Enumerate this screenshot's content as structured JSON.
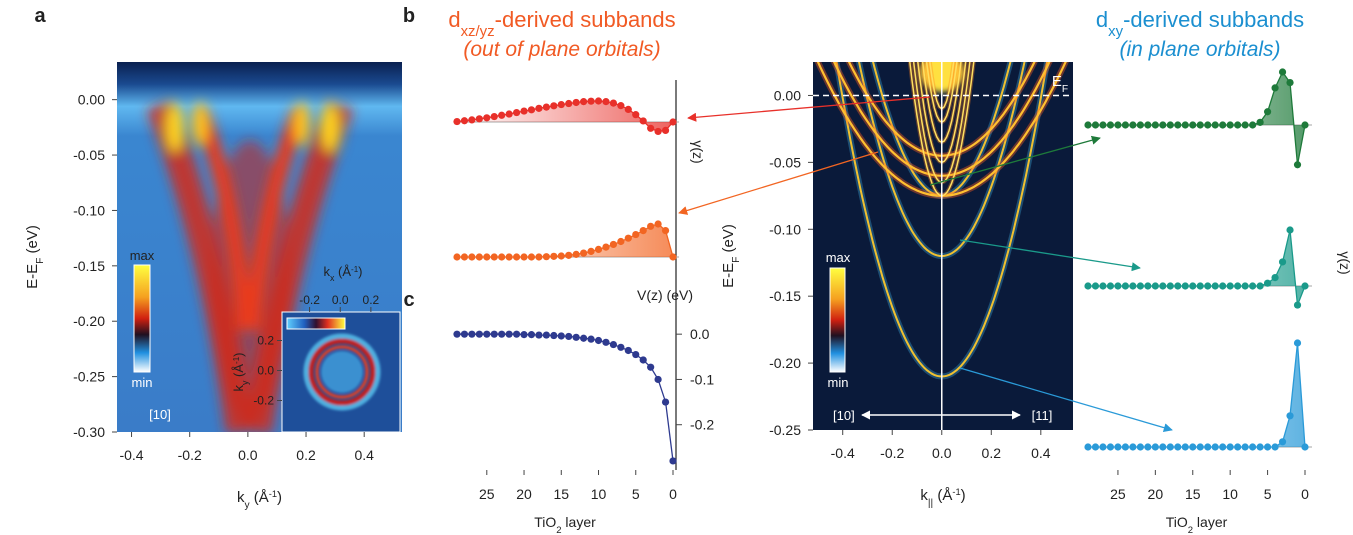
{
  "chart_data": [
    {
      "type": "image",
      "panel": "a",
      "xlabel": [
        {
          "t": "k"
        },
        {
          "sub": "y"
        },
        {
          "t": " (Å"
        },
        {
          "sup": "-1"
        },
        {
          "t": ")"
        }
      ],
      "ylabel": [
        {
          "t": "E-E"
        },
        {
          "sub": "F"
        },
        {
          "t": " (eV)"
        }
      ],
      "xlim": [
        -0.45,
        0.53
      ],
      "ylim": [
        -0.3,
        0.034
      ],
      "xticks": [
        -0.4,
        -0.2,
        {
          "value": 0,
          "label": "0.0"
        },
        0.2,
        0.4
      ],
      "yticks": [
        {
          "value": 0,
          "label": "0.00"
        },
        -0.05,
        {
          "value": -0.1,
          "label": "-0.10"
        },
        -0.15,
        {
          "value": -0.2,
          "label": "-0.20"
        },
        -0.25,
        {
          "value": -0.3,
          "label": "-0.30"
        }
      ],
      "colorbar": {
        "max": "max",
        "min": "min"
      },
      "annotation": "[10]",
      "inset": {
        "xlabel": [
          {
            "t": "k"
          },
          {
            "sub": "x"
          },
          {
            "t": " (Å"
          },
          {
            "sup": "-1"
          },
          {
            "t": ")"
          }
        ],
        "ylabel": [
          {
            "t": "k"
          },
          {
            "sub": "y"
          },
          {
            "t": " (Å"
          },
          {
            "sup": "-1"
          },
          {
            "t": ")"
          }
        ],
        "xlim": [
          -0.38,
          0.39
        ],
        "ylim": [
          -0.41,
          0.39
        ],
        "xticks": [
          -0.2,
          {
            "value": 0,
            "label": "0.0"
          },
          0.2
        ],
        "yticks": [
          -0.2,
          {
            "value": 0,
            "label": "0.0"
          },
          0.2
        ]
      }
    },
    {
      "type": "profile",
      "panel": "b",
      "title": [
        {
          "t": "d"
        },
        {
          "sub": "xz/yz"
        },
        {
          "t": "-derived subbands"
        }
      ],
      "subtitle": "(out of plane orbitals)",
      "ylabel": "γ(z)",
      "xlim": [
        29,
        0
      ],
      "x": [
        29,
        28,
        27,
        26,
        25,
        24,
        23,
        22,
        21,
        20,
        19,
        18,
        17,
        16,
        15,
        14,
        13,
        12,
        11,
        10,
        9,
        8,
        7,
        6,
        5,
        4,
        3,
        2,
        1,
        0
      ],
      "series": [
        {
          "color": "#e8302a",
          "values": [
            0.02,
            0.06,
            0.1,
            0.15,
            0.2,
            0.26,
            0.32,
            0.38,
            0.45,
            0.52,
            0.58,
            0.65,
            0.71,
            0.77,
            0.83,
            0.88,
            0.93,
            0.97,
            0.99,
            1.0,
            0.97,
            0.9,
            0.78,
            0.6,
            0.35,
            0.05,
            -0.3,
            -0.45,
            -0.4,
            0.0
          ]
        },
        {
          "color": "#f26522",
          "values": [
            0,
            0,
            0,
            0,
            0,
            0,
            0,
            0,
            0,
            0,
            0,
            0,
            0.01,
            0.02,
            0.03,
            0.05,
            0.08,
            0.12,
            0.17,
            0.23,
            0.3,
            0.38,
            0.47,
            0.57,
            0.68,
            0.8,
            0.93,
            1.0,
            0.8,
            0.0
          ]
        }
      ]
    },
    {
      "type": "line",
      "panel": "c",
      "ylabel": "V(z) (eV)",
      "xlabel": [
        {
          "t": "TiO"
        },
        {
          "sub": "2"
        },
        {
          "t": " layer"
        }
      ],
      "xlim": [
        29,
        0
      ],
      "ylim": [
        -0.3,
        0.06
      ],
      "xticks": [
        25,
        20,
        15,
        10,
        5,
        0
      ],
      "yticks": [
        {
          "value": 0,
          "label": "0.0"
        },
        -0.1,
        -0.2
      ],
      "x": [
        29,
        28,
        27,
        26,
        25,
        24,
        23,
        22,
        21,
        20,
        19,
        18,
        17,
        16,
        15,
        14,
        13,
        12,
        11,
        10,
        9,
        8,
        7,
        6,
        5,
        4,
        3,
        2,
        1,
        0
      ],
      "color": "#2e3a8f",
      "values": [
        0,
        0,
        0,
        0,
        0,
        0,
        0,
        0,
        0,
        -0.001,
        -0.001,
        -0.002,
        -0.002,
        -0.003,
        -0.004,
        -0.005,
        -0.007,
        -0.009,
        -0.011,
        -0.014,
        -0.018,
        -0.023,
        -0.029,
        -0.036,
        -0.045,
        -0.057,
        -0.073,
        -0.1,
        -0.15,
        -0.28
      ]
    },
    {
      "type": "image",
      "xlabel": [
        {
          "t": "k"
        },
        {
          "sub": "||"
        },
        {
          "t": " (Å"
        },
        {
          "sup": "-1"
        },
        {
          "t": ")"
        }
      ],
      "ylabel": [
        {
          "t": "E-E"
        },
        {
          "sub": "F"
        },
        {
          "t": " (eV)"
        }
      ],
      "xlim": [
        -0.52,
        0.53
      ],
      "ylim": [
        -0.25,
        0.025
      ],
      "xticks": [
        -0.4,
        -0.2,
        {
          "value": 0,
          "label": "0.0"
        },
        0.2,
        0.4
      ],
      "yticks": [
        {
          "value": 0,
          "label": "0.00"
        },
        -0.05,
        {
          "value": -0.1,
          "label": "-0.10"
        },
        -0.15,
        {
          "value": -0.2,
          "label": "-0.20"
        },
        -0.25
      ],
      "colorbar": {
        "max": "max",
        "min": "min"
      },
      "fermi_label": [
        {
          "t": "E"
        },
        {
          "sub": "F"
        }
      ],
      "direction_left": "[10]",
      "direction_right": "[11]"
    },
    {
      "type": "profile",
      "title": [
        {
          "t": "d"
        },
        {
          "sub": "xy"
        },
        {
          "t": "-derived subbands"
        }
      ],
      "subtitle": "(in plane orbitals)",
      "ylabel": "γ(z)",
      "xlabel": [
        {
          "t": "TiO"
        },
        {
          "sub": "2"
        },
        {
          "t": " layer"
        }
      ],
      "xlim": [
        29,
        0
      ],
      "xticks": [
        25,
        20,
        15,
        10,
        5,
        0
      ],
      "x": [
        29,
        28,
        27,
        26,
        25,
        24,
        23,
        22,
        21,
        20,
        19,
        18,
        17,
        16,
        15,
        14,
        13,
        12,
        11,
        10,
        9,
        8,
        7,
        6,
        5,
        4,
        3,
        2,
        1,
        0
      ],
      "series": [
        {
          "color": "#1e7a3a",
          "values": [
            0,
            0,
            0,
            0,
            0,
            0,
            0,
            0,
            0,
            0,
            0,
            0,
            0,
            0,
            0,
            0,
            0,
            0,
            0,
            0,
            0,
            0,
            0,
            0.05,
            0.25,
            0.7,
            1.0,
            0.8,
            -0.75,
            0
          ]
        },
        {
          "color": "#1a9a8a",
          "values": [
            0,
            0,
            0,
            0,
            0,
            0,
            0,
            0,
            0,
            0,
            0,
            0,
            0,
            0,
            0,
            0,
            0,
            0,
            0,
            0,
            0,
            0,
            0,
            0,
            0.05,
            0.15,
            0.43,
            1.0,
            -0.34,
            0
          ]
        },
        {
          "color": "#2a9ad8",
          "values": [
            0,
            0,
            0,
            0,
            0,
            0,
            0,
            0,
            0,
            0,
            0,
            0,
            0,
            0,
            0,
            0,
            0,
            0,
            0,
            0,
            0,
            0,
            0,
            0,
            0,
            0,
            0.05,
            0.3,
            1.0,
            0
          ]
        }
      ]
    }
  ]
}
